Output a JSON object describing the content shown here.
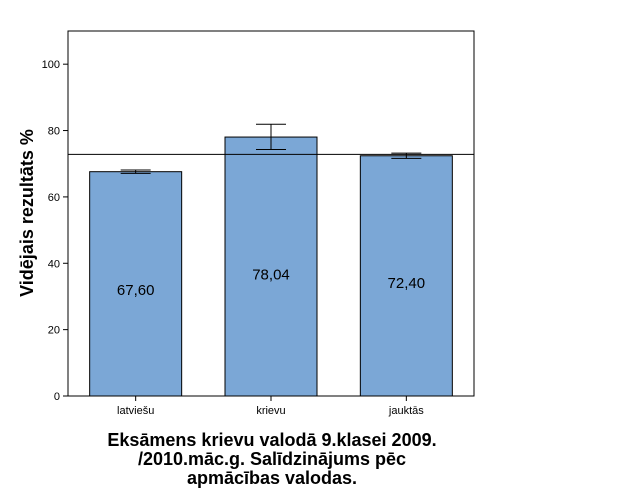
{
  "chart_data": {
    "type": "bar",
    "categories": [
      "latviešu",
      "krievu",
      "jauktās"
    ],
    "values": [
      67.6,
      78.04,
      72.4
    ],
    "value_labels": [
      "67,60",
      "78,04",
      "72,40"
    ],
    "error_bars": [
      {
        "low": 67.1,
        "high": 68.1
      },
      {
        "low": 74.3,
        "high": 81.9
      },
      {
        "low": 71.6,
        "high": 73.2
      }
    ],
    "reference_line": 72.8,
    "ylim": [
      0,
      110
    ],
    "yticks": [
      0,
      20,
      40,
      60,
      80,
      100
    ],
    "ylabel": "Vidējais rezultāts %",
    "title_lines": [
      "Eksāmens krievu valodā 9.klasei 2009.",
      "/2010.māc.g. Salīdzinājums pēc",
      "apmācības valodas."
    ],
    "grid": false,
    "bar_color": "#7ba7d6"
  }
}
